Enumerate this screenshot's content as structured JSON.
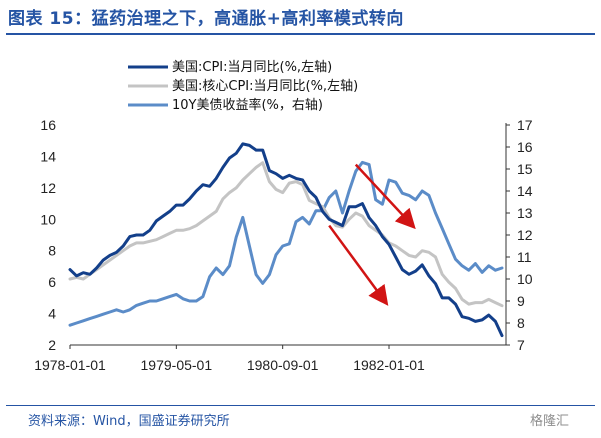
{
  "title": "图表 15：猛药治理之下，高通胀+高利率模式转向",
  "source": "资料来源：Wind，国盛证券研究所",
  "watermark": "格隆汇",
  "colors": {
    "title": "#2554a4",
    "cpi": "#133f8a",
    "core": "#c4c4c4",
    "ten": "#5b8cc8",
    "arrow": "#d11414"
  },
  "chart_data": {
    "type": "line",
    "x": [
      "1978-01",
      "1978-02",
      "1978-03",
      "1978-04",
      "1978-05",
      "1978-06",
      "1978-07",
      "1978-08",
      "1978-09",
      "1978-10",
      "1978-11",
      "1978-12",
      "1979-01",
      "1979-02",
      "1979-03",
      "1979-04",
      "1979-05",
      "1979-06",
      "1979-07",
      "1979-08",
      "1979-09",
      "1979-10",
      "1979-11",
      "1979-12",
      "1980-01",
      "1980-02",
      "1980-03",
      "1980-04",
      "1980-05",
      "1980-06",
      "1980-07",
      "1980-08",
      "1980-09",
      "1980-10",
      "1980-11",
      "1980-12",
      "1981-01",
      "1981-02",
      "1981-03",
      "1981-04",
      "1981-05",
      "1981-06",
      "1981-07",
      "1981-08",
      "1981-09",
      "1981-10",
      "1981-11",
      "1981-12",
      "1982-01",
      "1982-02",
      "1982-03",
      "1982-04",
      "1982-05",
      "1982-06",
      "1982-07",
      "1982-08",
      "1982-09",
      "1982-10",
      "1982-11",
      "1982-12",
      "1983-01",
      "1983-02",
      "1983-03",
      "1983-04",
      "1983-05",
      "1983-06"
    ],
    "xticks": [
      "1978-01-01",
      "1979-05-01",
      "1980-09-01",
      "1982-01-01"
    ],
    "xtick_index": [
      0,
      16,
      32,
      48
    ],
    "yleft": {
      "ticks": [
        2,
        4,
        6,
        8,
        10,
        12,
        14,
        16
      ],
      "range": [
        2,
        16
      ]
    },
    "yright": {
      "ticks": [
        7,
        8,
        9,
        10,
        11,
        12,
        13,
        14,
        15,
        16,
        17
      ],
      "range": [
        7,
        17
      ]
    },
    "series": [
      {
        "name": "美国:CPI:当月同比(%,左轴)",
        "axis": "left",
        "values": [
          6.8,
          6.4,
          6.6,
          6.5,
          6.9,
          7.4,
          7.7,
          7.9,
          8.3,
          8.9,
          9.0,
          9.0,
          9.3,
          9.9,
          10.2,
          10.5,
          10.9,
          10.9,
          11.3,
          11.8,
          12.2,
          12.1,
          12.6,
          13.3,
          13.9,
          14.2,
          14.8,
          14.7,
          14.4,
          14.4,
          13.1,
          12.9,
          12.6,
          12.8,
          12.6,
          12.5,
          11.8,
          11.4,
          10.5,
          10.0,
          9.8,
          9.6,
          10.8,
          10.8,
          11.0,
          10.1,
          9.6,
          8.9,
          8.4,
          7.6,
          6.8,
          6.5,
          6.7,
          7.1,
          6.4,
          5.9,
          5.0,
          5.0,
          4.6,
          3.8,
          3.7,
          3.5,
          3.6,
          3.9,
          3.5,
          2.6
        ]
      },
      {
        "name": "美国:核心CPI:当月同比(%,左轴)",
        "axis": "left",
        "values": [
          6.2,
          6.3,
          6.2,
          6.5,
          6.8,
          7.1,
          7.4,
          7.7,
          8.0,
          8.3,
          8.5,
          8.5,
          8.6,
          8.7,
          8.9,
          9.1,
          9.3,
          9.3,
          9.4,
          9.6,
          9.9,
          10.2,
          10.5,
          11.3,
          11.7,
          12.0,
          12.5,
          12.9,
          13.3,
          13.6,
          12.4,
          11.9,
          11.7,
          12.3,
          12.4,
          12.2,
          11.2,
          11.0,
          10.8,
          10.1,
          9.6,
          9.5,
          10.0,
          10.4,
          10.2,
          9.6,
          9.3,
          9.0,
          8.5,
          8.3,
          8.0,
          7.7,
          7.6,
          8.0,
          7.9,
          7.6,
          6.5,
          6.0,
          5.6,
          4.9,
          4.6,
          4.7,
          4.7,
          4.9,
          4.7,
          4.5
        ]
      },
      {
        "name": "10Y美债收益率(%，右轴)",
        "axis": "right",
        "values": [
          7.9,
          8.0,
          8.1,
          8.2,
          8.3,
          8.4,
          8.5,
          8.6,
          8.5,
          8.6,
          8.8,
          8.9,
          9.0,
          9.0,
          9.1,
          9.2,
          9.3,
          9.1,
          9.0,
          9.0,
          9.2,
          10.1,
          10.5,
          10.2,
          10.6,
          11.9,
          12.8,
          11.5,
          10.2,
          9.8,
          10.2,
          11.1,
          11.5,
          11.6,
          12.6,
          12.8,
          12.5,
          13.1,
          13.1,
          13.7,
          14.0,
          13.0,
          14.0,
          14.9,
          15.3,
          15.2,
          13.6,
          13.4,
          14.5,
          14.4,
          13.9,
          13.8,
          13.6,
          14.0,
          13.8,
          13.0,
          12.3,
          11.6,
          10.9,
          10.6,
          10.4,
          10.7,
          10.3,
          10.6,
          10.4,
          10.5
        ]
      }
    ]
  }
}
